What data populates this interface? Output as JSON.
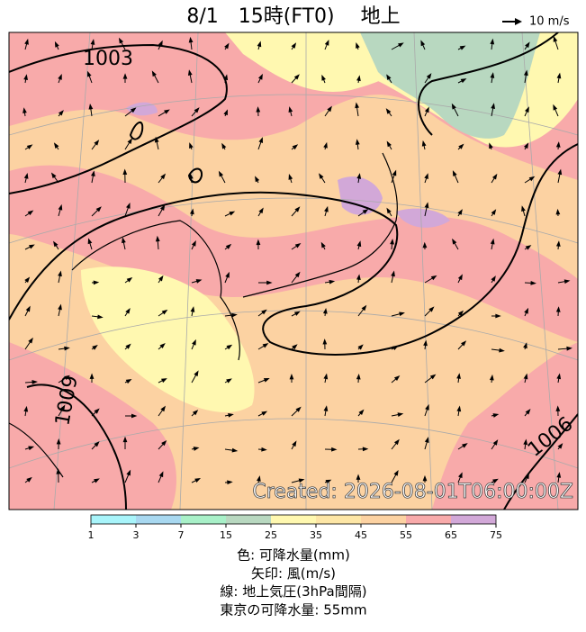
{
  "title": "8/1　15時(FT0)　 地上",
  "wind_legend": "10 m/s",
  "map": {
    "isobar_labels": [
      "1003",
      "1009",
      "1006"
    ],
    "created": "Created: 2026-08-01T06:00:00Z"
  },
  "colorbar": {
    "ticks": [
      1,
      3,
      7,
      15,
      25,
      35,
      45,
      55,
      65,
      75
    ],
    "colors": [
      "#a8f4fa",
      "#a8d8f0",
      "#a8f0c8",
      "#b8d8c0",
      "#fff8b0",
      "#fde6a6",
      "#fcd2a2",
      "#f8aaaa",
      "#d2a8d8"
    ]
  },
  "caption": [
    "色: 可降水量(mm)",
    "矢印: 風(m/s)",
    "線: 地上気圧(3hPa間隔)",
    "東京の可降水量: 55mm"
  ]
}
